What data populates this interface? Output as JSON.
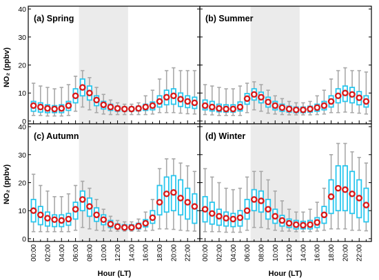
{
  "figure": {
    "ylabel": "NO₂ (ppbv)",
    "xlabel": "Hour (LT)"
  },
  "chart_data": [
    {
      "type": "box",
      "title": "(a) Spring",
      "xlabel": "Hour (LT)",
      "ylabel": "NO₂ (ppbv)",
      "ylim": [
        -1,
        41
      ],
      "yticks": [
        0,
        10,
        20,
        30,
        40
      ],
      "shaded_hours": [
        6.5,
        13.5
      ],
      "x": [
        0,
        1,
        2,
        3,
        4,
        5,
        6,
        7,
        8,
        9,
        10,
        11,
        12,
        13,
        14,
        15,
        16,
        17,
        18,
        19,
        20,
        21,
        22,
        23
      ],
      "xtick_labels": [
        "00:00",
        "02:00",
        "04:00",
        "06:00",
        "08:00",
        "10:00",
        "12:00",
        "14:00",
        "16:00",
        "18:00",
        "20:00",
        "22:00"
      ],
      "mean": [
        5.5,
        5.0,
        4.5,
        4.3,
        4.5,
        5.5,
        9.0,
        12.0,
        10.0,
        7.5,
        5.8,
        5.0,
        4.5,
        4.3,
        4.3,
        4.5,
        5.0,
        5.5,
        7.0,
        8.5,
        9.0,
        7.8,
        7.0,
        6.5
      ],
      "q1": [
        3.5,
        3.2,
        3.0,
        3.0,
        3.0,
        3.8,
        6.5,
        9.0,
        7.5,
        5.5,
        4.3,
        3.8,
        3.5,
        3.5,
        3.5,
        3.6,
        3.8,
        4.0,
        5.0,
        5.8,
        6.0,
        5.2,
        4.8,
        4.5
      ],
      "q3": [
        7.0,
        6.5,
        5.8,
        5.5,
        5.8,
        7.0,
        11.5,
        15.0,
        12.5,
        9.0,
        7.0,
        6.0,
        5.3,
        5.0,
        5.0,
        5.3,
        6.0,
        6.8,
        9.0,
        11.0,
        11.5,
        10.0,
        9.0,
        8.5
      ],
      "whisker_low": [
        2.0,
        2.0,
        1.8,
        1.8,
        1.8,
        2.0,
        3.5,
        5.0,
        4.0,
        3.0,
        2.5,
        2.3,
        2.3,
        2.3,
        2.3,
        2.3,
        2.3,
        2.5,
        3.0,
        3.0,
        3.0,
        2.8,
        2.6,
        2.5
      ],
      "whisker_high": [
        13.5,
        12.5,
        12.0,
        11.5,
        12.0,
        13.0,
        16.0,
        18.0,
        15.5,
        12.0,
        9.5,
        7.5,
        6.5,
        6.0,
        6.0,
        6.5,
        9.0,
        11.0,
        15.0,
        18.0,
        19.0,
        18.0,
        18.0,
        18.0
      ]
    },
    {
      "type": "box",
      "title": "(b) Summer",
      "xlabel": "Hour (LT)",
      "ylabel": "NO₂ (ppbv)",
      "ylim": [
        -1,
        41
      ],
      "yticks": [
        0,
        10,
        20,
        30,
        40
      ],
      "shaded_hours": [
        6.5,
        13.5
      ],
      "x": [
        0,
        1,
        2,
        3,
        4,
        5,
        6,
        7,
        8,
        9,
        10,
        11,
        12,
        13,
        14,
        15,
        16,
        17,
        18,
        19,
        20,
        21,
        22,
        23
      ],
      "xtick_labels": [
        "00:00",
        "02:00",
        "04:00",
        "06:00",
        "08:00",
        "10:00",
        "12:00",
        "14:00",
        "16:00",
        "18:00",
        "20:00",
        "22:00"
      ],
      "mean": [
        5.5,
        5.0,
        4.5,
        4.3,
        4.3,
        5.0,
        8.0,
        9.5,
        8.5,
        6.8,
        5.5,
        4.8,
        4.3,
        4.0,
        4.0,
        4.3,
        4.8,
        5.5,
        7.0,
        9.0,
        10.0,
        9.5,
        8.3,
        7.0
      ],
      "q1": [
        4.0,
        3.6,
        3.3,
        3.2,
        3.2,
        3.6,
        6.0,
        7.5,
        6.5,
        5.0,
        4.0,
        3.5,
        3.2,
        3.0,
        3.0,
        3.2,
        3.5,
        4.0,
        5.0,
        6.5,
        7.0,
        6.5,
        5.8,
        5.0
      ],
      "q3": [
        7.5,
        7.0,
        6.0,
        5.8,
        5.8,
        6.8,
        9.8,
        11.5,
        10.3,
        8.5,
        7.0,
        6.0,
        5.3,
        5.0,
        5.0,
        5.3,
        6.0,
        7.0,
        9.0,
        11.5,
        12.5,
        12.0,
        10.5,
        9.0
      ],
      "whisker_low": [
        2.3,
        2.2,
        2.0,
        2.0,
        2.0,
        2.0,
        3.0,
        4.0,
        3.5,
        2.8,
        2.5,
        2.3,
        2.2,
        2.2,
        2.2,
        2.2,
        2.3,
        2.5,
        3.0,
        3.0,
        3.2,
        3.0,
        2.8,
        2.5
      ],
      "whisker_high": [
        13.0,
        12.5,
        12.0,
        11.5,
        11.5,
        12.5,
        13.5,
        14.0,
        13.0,
        11.0,
        9.0,
        8.0,
        7.0,
        6.5,
        6.5,
        7.0,
        9.0,
        11.0,
        15.0,
        18.0,
        19.0,
        18.0,
        18.0,
        17.5
      ]
    },
    {
      "type": "box",
      "title": "(c) Autumn",
      "xlabel": "Hour (LT)",
      "ylabel": "NO₂ (ppbv)",
      "ylim": [
        -1,
        41
      ],
      "yticks": [
        0,
        10,
        20,
        30,
        40
      ],
      "shaded_hours": [
        6.5,
        13.5
      ],
      "x": [
        0,
        1,
        2,
        3,
        4,
        5,
        6,
        7,
        8,
        9,
        10,
        11,
        12,
        13,
        14,
        15,
        16,
        17,
        18,
        19,
        20,
        21,
        22,
        23
      ],
      "xtick_labels": [
        "00:00",
        "02:00",
        "04:00",
        "06:00",
        "08:00",
        "10:00",
        "12:00",
        "14:00",
        "16:00",
        "18:00",
        "20:00",
        "22:00"
      ],
      "mean": [
        10.0,
        8.5,
        7.3,
        6.8,
        6.5,
        7.0,
        10.5,
        14.0,
        11.5,
        8.5,
        6.8,
        5.2,
        4.3,
        4.0,
        4.0,
        4.5,
        5.5,
        7.5,
        13.0,
        16.0,
        16.5,
        14.5,
        13.0,
        11.5
      ],
      "q1": [
        6.0,
        5.0,
        4.5,
        4.3,
        4.3,
        4.8,
        7.0,
        10.0,
        8.0,
        6.2,
        5.0,
        4.0,
        3.5,
        3.2,
        3.2,
        3.5,
        4.2,
        5.5,
        8.5,
        9.5,
        10.0,
        8.5,
        7.0,
        5.5
      ],
      "q3": [
        14.0,
        11.5,
        9.5,
        8.5,
        8.5,
        9.0,
        13.0,
        17.0,
        14.5,
        11.0,
        8.5,
        6.5,
        5.3,
        5.0,
        5.0,
        5.5,
        6.8,
        10.0,
        19.0,
        22.0,
        22.5,
        21.0,
        18.0,
        16.0
      ],
      "whisker_low": [
        2.5,
        2.5,
        2.5,
        2.5,
        2.5,
        2.5,
        3.0,
        4.0,
        3.5,
        3.0,
        2.8,
        2.7,
        2.7,
        2.7,
        2.7,
        2.7,
        2.8,
        3.0,
        3.5,
        3.5,
        3.3,
        3.0,
        2.8,
        2.7
      ],
      "whisker_high": [
        23.0,
        19.0,
        17.0,
        15.0,
        15.0,
        16.0,
        19.0,
        20.5,
        18.0,
        14.0,
        10.5,
        8.0,
        6.5,
        6.0,
        6.0,
        7.0,
        9.5,
        14.0,
        25.0,
        28.5,
        28.5,
        27.0,
        26.0,
        24.0
      ]
    },
    {
      "type": "box",
      "title": "(d) Winter",
      "xlabel": "Hour (LT)",
      "ylabel": "NO₂ (ppbv)",
      "ylim": [
        -1,
        41
      ],
      "yticks": [
        0,
        10,
        20,
        30,
        40
      ],
      "shaded_hours": [
        6.5,
        13.5
      ],
      "x": [
        0,
        1,
        2,
        3,
        4,
        5,
        6,
        7,
        8,
        9,
        10,
        11,
        12,
        13,
        14,
        15,
        16,
        17,
        18,
        19,
        20,
        21,
        22,
        23
      ],
      "xtick_labels": [
        "00:00",
        "02:00",
        "04:00",
        "06:00",
        "08:00",
        "10:00",
        "12:00",
        "14:00",
        "16:00",
        "18:00",
        "20:00",
        "22:00"
      ],
      "mean": [
        10.5,
        9.0,
        8.0,
        7.3,
        7.0,
        7.5,
        10.0,
        14.0,
        13.5,
        10.5,
        8.0,
        6.5,
        5.5,
        5.0,
        4.8,
        5.0,
        5.8,
        8.5,
        15.0,
        18.0,
        17.5,
        16.0,
        14.5,
        12.0
      ],
      "q1": [
        6.0,
        5.2,
        4.8,
        4.5,
        4.3,
        4.5,
        7.0,
        10.0,
        9.5,
        7.0,
        5.5,
        4.5,
        4.0,
        3.5,
        3.5,
        3.5,
        4.0,
        5.5,
        9.0,
        10.0,
        10.0,
        9.0,
        7.5,
        6.0
      ],
      "q3": [
        15.0,
        13.0,
        10.5,
        9.5,
        9.0,
        10.0,
        14.0,
        17.5,
        17.0,
        14.0,
        10.5,
        8.3,
        7.0,
        6.5,
        6.2,
        6.5,
        7.5,
        11.5,
        21.0,
        26.0,
        26.0,
        24.0,
        21.0,
        18.0
      ],
      "whisker_low": [
        2.5,
        2.5,
        2.5,
        2.3,
        2.3,
        2.3,
        3.0,
        4.0,
        4.0,
        3.5,
        3.0,
        2.7,
        2.7,
        2.5,
        2.5,
        2.5,
        2.7,
        3.0,
        3.5,
        3.5,
        3.5,
        3.0,
        3.0,
        2.8
      ],
      "whisker_high": [
        25.0,
        22.0,
        20.0,
        18.0,
        17.5,
        18.0,
        22.0,
        24.0,
        24.0,
        21.0,
        17.0,
        13.5,
        10.5,
        9.5,
        9.5,
        10.5,
        13.0,
        18.0,
        30.0,
        34.0,
        34.0,
        31.0,
        29.0,
        27.0
      ]
    }
  ],
  "colors": {
    "box_stroke": "#29c7ee",
    "whisker": "#a8a8a8",
    "mean_fill": "#d81a1a",
    "mean_center": "#ffffff",
    "shade": "#ebebeb",
    "frame": "#000000"
  }
}
